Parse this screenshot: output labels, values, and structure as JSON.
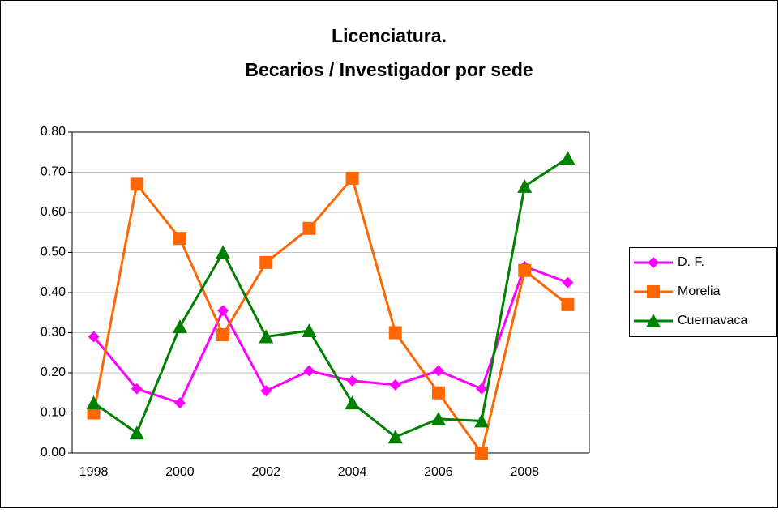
{
  "chart_data": {
    "type": "line",
    "title": [
      "Licenciatura.",
      "Becarios / Investigador por sede"
    ],
    "categories": [
      "1998",
      null,
      "2000",
      null,
      "2002",
      null,
      "2004",
      null,
      "2006",
      null,
      "2008",
      null
    ],
    "series": [
      {
        "name": "D. F.",
        "color": "#ff00ff",
        "marker": "diamond",
        "values": [
          0.29,
          0.16,
          0.125,
          0.355,
          0.155,
          0.205,
          0.18,
          0.17,
          0.205,
          0.16,
          0.465,
          0.425
        ]
      },
      {
        "name": "Morelia",
        "color": "#ff6600",
        "marker": "square",
        "values": [
          0.1,
          0.67,
          0.535,
          0.295,
          0.475,
          0.56,
          0.685,
          0.3,
          0.15,
          0.0,
          0.455,
          0.37
        ]
      },
      {
        "name": "Cuernavaca",
        "color": "#008000",
        "marker": "triangle",
        "values": [
          0.125,
          0.05,
          0.315,
          0.5,
          0.29,
          0.305,
          0.125,
          0.04,
          0.085,
          0.08,
          0.665,
          0.735
        ]
      }
    ],
    "ylim": [
      0,
      0.8
    ],
    "yticks": [
      {
        "value": 0,
        "label": "0.00"
      },
      {
        "value": 0.1,
        "label": "0.10"
      },
      {
        "value": 0.2,
        "label": "0.20"
      },
      {
        "value": 0.3,
        "label": "0.30"
      },
      {
        "value": 0.4,
        "label": "0.40"
      },
      {
        "value": 0.5,
        "label": "0.50"
      },
      {
        "value": 0.6,
        "label": "0.60"
      },
      {
        "value": 0.7,
        "label": "0.70"
      },
      {
        "value": 0.8,
        "label": "0.80"
      }
    ],
    "grid": true,
    "legend": "right"
  }
}
